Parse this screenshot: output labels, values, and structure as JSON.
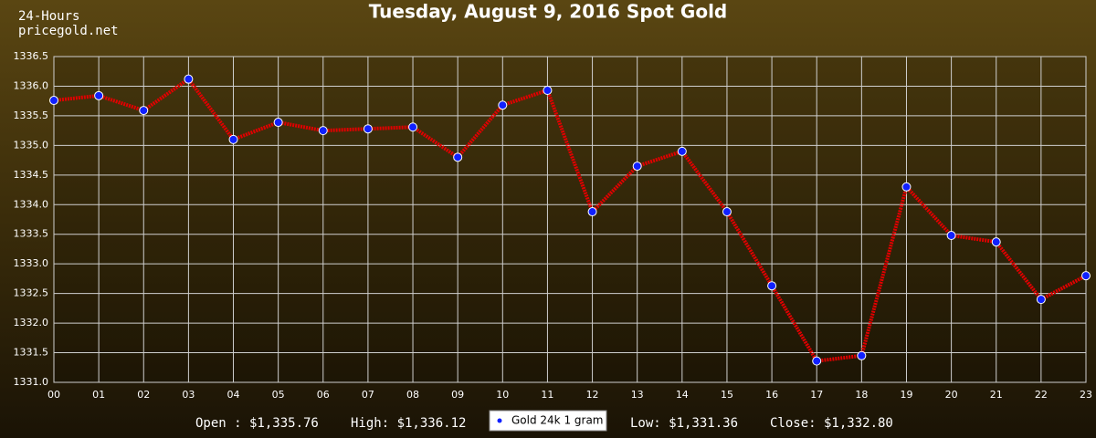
{
  "site": {
    "period": "24-Hours",
    "source": "pricegold.net"
  },
  "chart_data": {
    "type": "line",
    "title": "Tuesday, August 9, 2016 Spot Gold",
    "categories": [
      "00",
      "01",
      "02",
      "03",
      "04",
      "05",
      "06",
      "07",
      "08",
      "09",
      "10",
      "11",
      "12",
      "13",
      "14",
      "15",
      "16",
      "17",
      "18",
      "19",
      "20",
      "21",
      "22",
      "23"
    ],
    "series": [
      {
        "name": "Gold 24k 1 gram",
        "color": "#e00000",
        "marker_color": "#1020ff",
        "values": [
          1335.76,
          1335.84,
          1335.59,
          1336.12,
          1335.1,
          1335.39,
          1335.25,
          1335.28,
          1335.31,
          1334.8,
          1335.68,
          1335.93,
          1333.88,
          1334.65,
          1334.9,
          1333.88,
          1332.63,
          1331.36,
          1331.45,
          1334.3,
          1333.48,
          1333.37,
          1332.4,
          1332.8
        ]
      }
    ],
    "ylim": [
      1331,
      1336.5
    ],
    "yticks": [
      {
        "value": 1331,
        "label": "1331.0"
      },
      1331.5,
      {
        "value": 1332,
        "label": "1332.0"
      },
      1332.5,
      {
        "value": 1333,
        "label": "1333.0"
      },
      1333.5,
      {
        "value": 1334,
        "label": "1334.0"
      },
      1334.5,
      {
        "value": 1335,
        "label": "1335.0"
      },
      1335.5,
      {
        "value": 1336,
        "label": "1336.0"
      },
      1336.5
    ],
    "grid": true
  },
  "stats": {
    "open": "Open : $1,335.76",
    "high": "High: $1,336.12",
    "low": "Low: $1,331.36",
    "close": "Close: $1,332.80"
  }
}
